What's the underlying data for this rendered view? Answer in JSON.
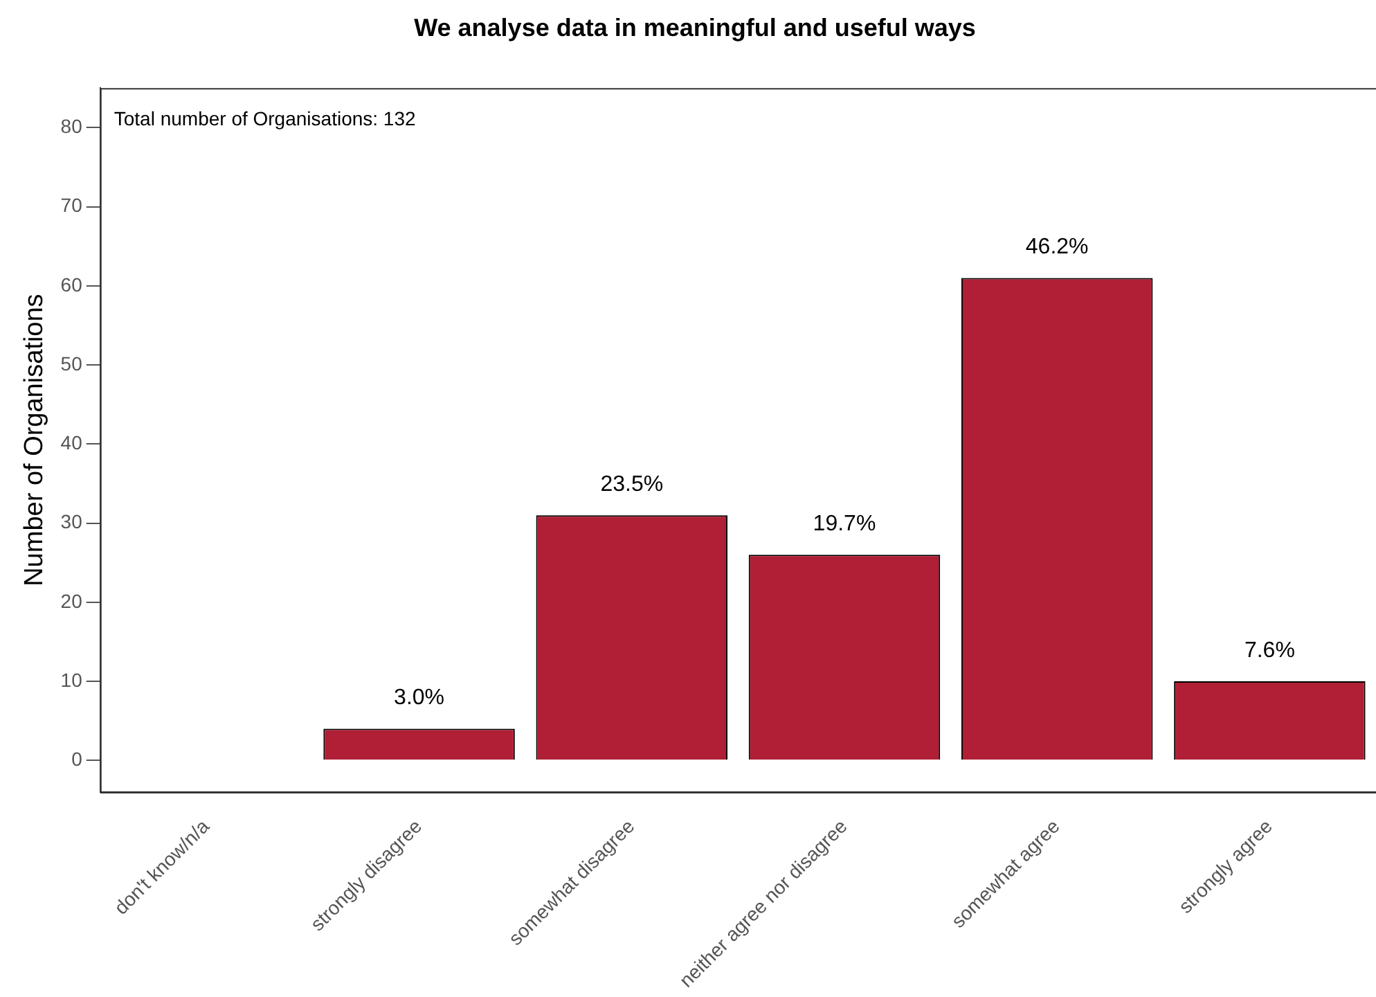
{
  "chart_data": {
    "type": "bar",
    "title": "We analyse data in meaningful and useful ways",
    "ylabel": "Number of Organisations",
    "annotations": [
      "Total number of Organisations: 132",
      {
        "text": "3.0%",
        "x": "strongly disagree",
        "y": 4
      },
      {
        "text": "23.5%",
        "x": "somewhat disagree",
        "y": 31
      },
      {
        "text": "19.7%",
        "x": "neither agree nor disagree",
        "y": 26
      },
      {
        "text": "46.2%",
        "x": "somewhat agree",
        "y": 61
      },
      {
        "text": "7.6%",
        "x": "strongly agree",
        "y": 10
      }
    ],
    "categories": [
      "don't know/n/a",
      "strongly disagree",
      "somewhat disagree",
      "neither agree nor disagree",
      "somewhat agree",
      "strongly agree"
    ],
    "values": [
      0,
      4,
      31,
      26,
      61,
      10
    ],
    "color": "#b01f35",
    "ylim": [
      -4,
      85
    ],
    "yticks": [
      0,
      10,
      20,
      30,
      40,
      50,
      60,
      70,
      80
    ]
  }
}
